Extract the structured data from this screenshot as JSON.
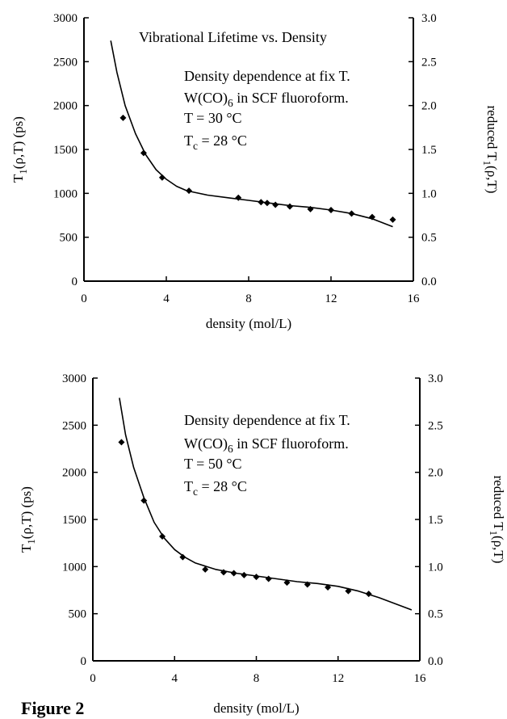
{
  "figure_label": "Figure 2",
  "chart_data": [
    {
      "type": "scatter",
      "title": "Vibrational Lifetime vs. Density",
      "annotations": [
        "Density dependence at fix T.",
        "W(CO)6 in SCF fluoroform.",
        "T = 30 °C",
        "Tc = 28 °C"
      ],
      "xlabel": "density (mol/L)",
      "ylabel": "T1(ρ,T) (ps)",
      "ylabel_right": "reduced T1(ρ,T)",
      "xlim": [
        0,
        16
      ],
      "ylim": [
        0,
        3000
      ],
      "ylim_right": [
        0.0,
        3.0
      ],
      "x_ticks": [
        "0",
        "4",
        "8",
        "12",
        "16"
      ],
      "y_ticks": [
        "0",
        "500",
        "1000",
        "1500",
        "2000",
        "2500",
        "3000"
      ],
      "y_right_ticks": [
        "0.0",
        "0.5",
        "1.0",
        "1.5",
        "2.0",
        "2.5",
        "3.0"
      ],
      "grid": false,
      "series": [
        {
          "kind": "points",
          "x": [
            1.9,
            2.9,
            3.8,
            5.1,
            7.5,
            8.6,
            8.9,
            9.3,
            10.0,
            11.0,
            12.0,
            13.0,
            14.0,
            15.0
          ],
          "y": [
            1860,
            1460,
            1180,
            1030,
            950,
            900,
            890,
            870,
            850,
            820,
            810,
            770,
            730,
            700
          ]
        },
        {
          "kind": "line",
          "x": [
            1.3,
            1.6,
            2.0,
            2.5,
            3.0,
            3.5,
            4.0,
            4.5,
            5.0,
            6.0,
            7.0,
            8.0,
            9.0,
            10.0,
            11.0,
            12.0,
            13.0,
            14.0,
            15.0
          ],
          "y": [
            2740,
            2380,
            2000,
            1680,
            1440,
            1270,
            1160,
            1080,
            1030,
            980,
            950,
            920,
            890,
            860,
            840,
            810,
            770,
            710,
            620
          ]
        }
      ]
    },
    {
      "type": "scatter",
      "annotations": [
        "Density dependence at fix T.",
        "W(CO)6 in SCF fluoroform.",
        "T = 50 °C",
        "Tc = 28 °C"
      ],
      "xlabel": "density (mol/L)",
      "ylabel": "T1(ρ,T) (ps)",
      "ylabel_right": "reduced T1(ρ,T)",
      "xlim": [
        0,
        16
      ],
      "ylim": [
        0,
        3000
      ],
      "ylim_right": [
        0.0,
        3.0
      ],
      "x_ticks": [
        "0",
        "4",
        "8",
        "12",
        "16"
      ],
      "y_ticks": [
        "0",
        "500",
        "1000",
        "1500",
        "2000",
        "2500",
        "3000"
      ],
      "y_right_ticks": [
        "0.0",
        "0.5",
        "1.0",
        "1.5",
        "2.0",
        "2.5",
        "3.0"
      ],
      "grid": false,
      "series": [
        {
          "kind": "points",
          "x": [
            1.4,
            2.5,
            3.4,
            4.4,
            5.5,
            6.4,
            6.9,
            7.4,
            8.0,
            8.6,
            9.5,
            10.5,
            11.5,
            12.5,
            13.5
          ],
          "y": [
            2320,
            1700,
            1320,
            1100,
            970,
            940,
            930,
            910,
            890,
            870,
            830,
            810,
            780,
            740,
            710
          ]
        },
        {
          "kind": "line",
          "x": [
            1.3,
            1.6,
            2.0,
            2.5,
            3.0,
            3.5,
            4.0,
            4.5,
            5.0,
            6.0,
            7.0,
            8.0,
            9.0,
            10.0,
            11.0,
            12.0,
            13.0,
            14.0,
            15.0,
            15.6
          ],
          "y": [
            2790,
            2400,
            2050,
            1730,
            1470,
            1300,
            1180,
            1100,
            1040,
            970,
            930,
            900,
            870,
            840,
            820,
            790,
            740,
            670,
            590,
            540
          ]
        }
      ]
    }
  ]
}
